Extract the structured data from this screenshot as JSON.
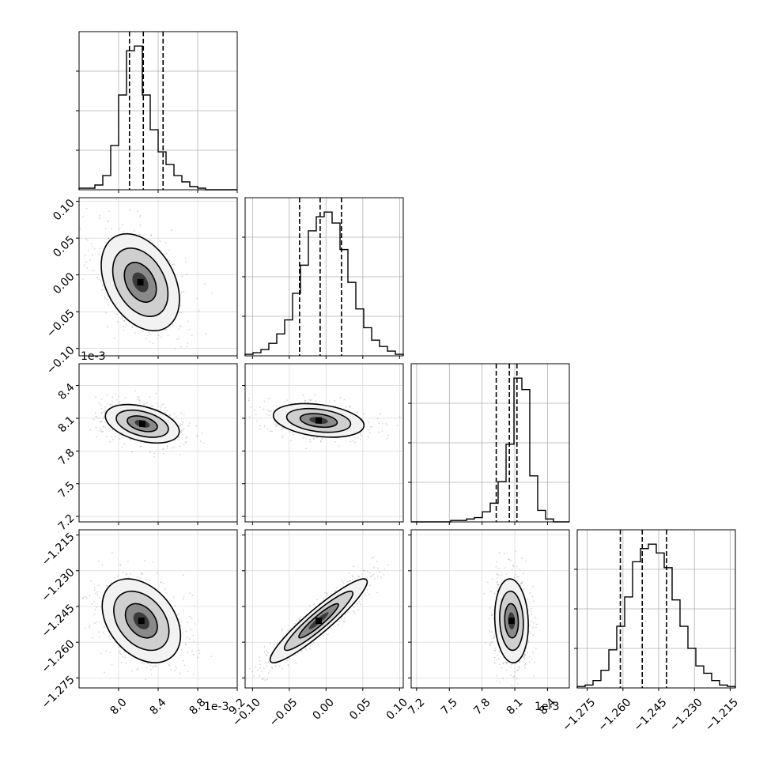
{
  "chart_data": {
    "type": "corner",
    "grid": true,
    "panels_hidden": "upper-triangle",
    "parameters": [
      {
        "range": [
          7.6,
          9.2
        ],
        "scale_factor": "1e-3",
        "ticks": [
          8.0,
          8.4,
          8.8,
          9.2
        ],
        "tick_labels": [
          "8.0",
          "8.4",
          "8.8",
          "9.2"
        ],
        "quantiles": [
          8.11,
          8.25,
          8.45
        ],
        "hist_values": [
          1,
          1,
          3,
          9,
          28,
          60,
          88,
          91,
          60,
          38,
          24,
          16,
          9,
          5,
          2,
          1,
          0,
          0,
          0,
          0
        ]
      },
      {
        "range": [
          -0.11,
          0.105
        ],
        "scale_factor": "",
        "ticks": [
          -0.1,
          -0.05,
          0.0,
          0.05,
          0.1
        ],
        "tick_labels": [
          "−0.10",
          "−0.05",
          "0.00",
          "0.05",
          "0.10"
        ],
        "quantiles": [
          -0.036,
          -0.008,
          0.021
        ],
        "hist_values": [
          1,
          2,
          4,
          8,
          14,
          23,
          40,
          58,
          80,
          89,
          92,
          85,
          68,
          47,
          30,
          18,
          10,
          6,
          3,
          1
        ]
      },
      {
        "range": [
          7.15,
          8.6
        ],
        "scale_factor": "1e-3",
        "ticks": [
          7.2,
          7.5,
          7.8,
          8.1,
          8.4
        ],
        "tick_labels": [
          "7.2",
          "7.5",
          "7.8",
          "8.1",
          "8.4"
        ],
        "quantiles": [
          7.93,
          8.05,
          8.12
        ],
        "hist_values": [
          0,
          0,
          0,
          0,
          0,
          1,
          1,
          2,
          3,
          7,
          13,
          28,
          54,
          100,
          92,
          32,
          8,
          2,
          0,
          0
        ]
      },
      {
        "range": [
          -1.2792,
          -1.2128
        ],
        "scale_factor": "",
        "ticks": [
          -1.275,
          -1.26,
          -1.245,
          -1.23,
          -1.215
        ],
        "tick_labels": [
          "−1.275",
          "−1.260",
          "−1.245",
          "−1.230",
          "−1.215"
        ],
        "quantiles": [
          -1.2611,
          -1.2519,
          -1.2417
        ],
        "hist_values": [
          1,
          2,
          5,
          12,
          26,
          42,
          62,
          86,
          95,
          98,
          92,
          82,
          60,
          42,
          27,
          15,
          10,
          5,
          2,
          1
        ]
      }
    ],
    "pairs": [
      {
        "x": 0,
        "y": 1,
        "center": [
          8.22,
          -0.01
        ],
        "spread": [
          0.18,
          0.03
        ],
        "corr": -0.35
      },
      {
        "x": 0,
        "y": 2,
        "center": [
          8.24,
          8.05
        ],
        "spread": [
          0.17,
          0.08
        ],
        "corr": -0.4
      },
      {
        "x": 1,
        "y": 2,
        "center": [
          -0.01,
          8.08
        ],
        "spread": [
          0.028,
          0.07
        ],
        "corr": -0.3
      },
      {
        "x": 0,
        "y": 3,
        "center": [
          8.23,
          -1.251
        ],
        "spread": [
          0.18,
          0.008
        ],
        "corr": -0.35
      },
      {
        "x": 1,
        "y": 3,
        "center": [
          -0.01,
          -1.251
        ],
        "spread": [
          0.03,
          0.008
        ],
        "corr": 0.93
      },
      {
        "x": 2,
        "y": 3,
        "center": [
          8.07,
          -1.251
        ],
        "spread": [
          0.07,
          0.008
        ],
        "corr": -0.1
      }
    ]
  }
}
